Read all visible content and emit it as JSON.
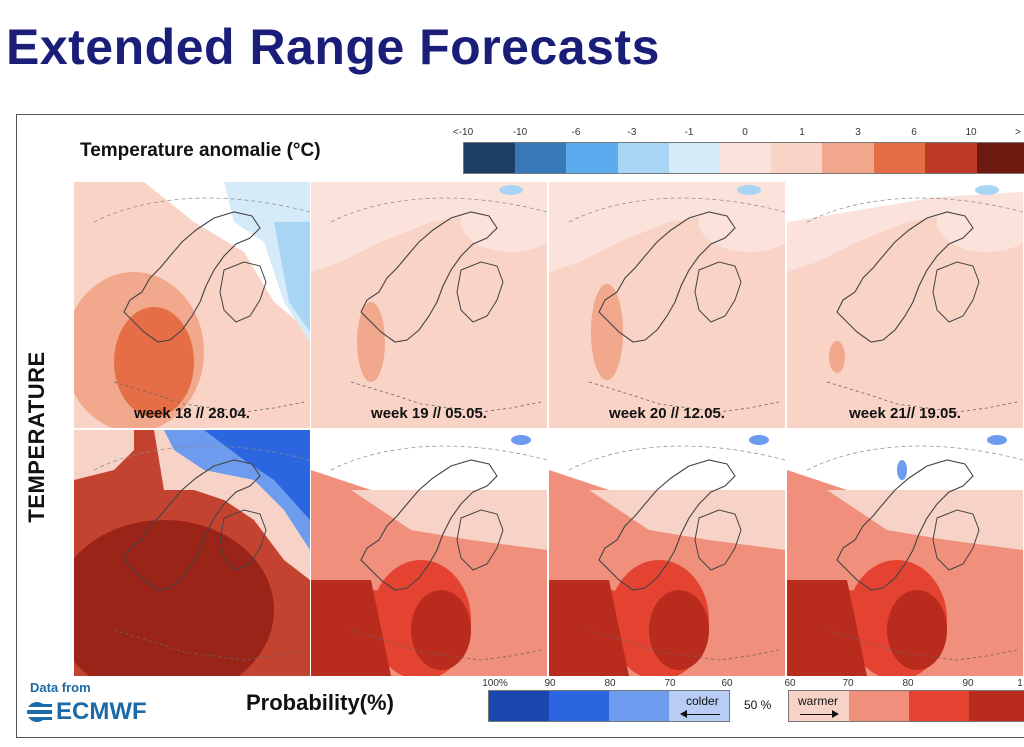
{
  "title": "Extended Range Forecasts",
  "side_label": "TEMPERATURE",
  "anomaly": {
    "label": "Temperature anomalie (°C)",
    "ticks": [
      "<-10",
      "-10",
      "-6",
      "-3",
      "-1",
      "0",
      "",
      "1",
      "3",
      "6",
      "10",
      ">"
    ],
    "colors": [
      "#1d3d63",
      "#3778b9",
      "#5aacee",
      "#a9d5f5",
      "#d6ebfa",
      "#fbe3dc",
      "#f8d3c6",
      "#f1a88d",
      "#e66e47",
      "#bd3a25",
      "#6e1a10"
    ]
  },
  "weeks": [
    {
      "label": "week 18 // 28.04."
    },
    {
      "label": "week 19 // 05.05."
    },
    {
      "label": "week 20 // 12.05."
    },
    {
      "label": "week 21// 19.05."
    }
  ],
  "probability": {
    "label": "Probability(%)",
    "ticks_cold": [
      "100%",
      "90",
      "80",
      "70",
      "60"
    ],
    "ticks_warm": [
      "60",
      "70",
      "80",
      "90",
      "1"
    ],
    "colder": "colder",
    "fifty": "50 %",
    "warmer": "warmer",
    "cold_colors": [
      "#1b46ae",
      "#2b66e0",
      "#6d9cef",
      "#b8cdf4"
    ],
    "warm_colors": [
      "#f7d2c7",
      "#f08f7c",
      "#e44332",
      "#b92b1c"
    ]
  },
  "source": {
    "data_from": "Data from",
    "org": "ECMWF"
  }
}
